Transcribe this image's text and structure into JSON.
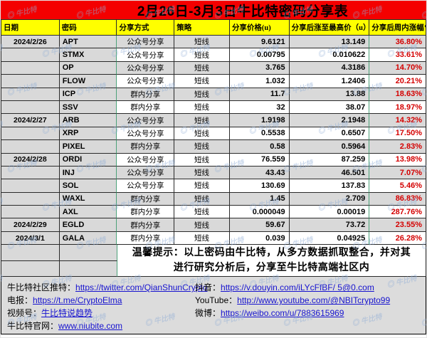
{
  "title": "2月26日-3月3日牛比特密码分享表",
  "watermark": "牛比特",
  "columns": [
    "日期",
    "密码",
    "分享方式",
    "策略",
    "分享价格(u)",
    "分享后涨至最高价（u）",
    "分享后周内涨幅%"
  ],
  "rows": [
    {
      "date": "2024/2/26",
      "code": "APT",
      "method": "公众号分享",
      "strategy": "短线",
      "price": "9.6121",
      "high": "13.149",
      "gain": "36.80%"
    },
    {
      "date": "",
      "code": "STMX",
      "method": "公众号分享",
      "strategy": "短线",
      "price": "0.00795",
      "high": "0.010622",
      "gain": "33.61%"
    },
    {
      "date": "",
      "code": "OP",
      "method": "公众号分享",
      "strategy": "短线",
      "price": "3.765",
      "high": "4.3186",
      "gain": "14.70%"
    },
    {
      "date": "",
      "code": "FLOW",
      "method": "公众号分享",
      "strategy": "短线",
      "price": "1.032",
      "high": "1.2406",
      "gain": "20.21%"
    },
    {
      "date": "",
      "code": "ICP",
      "method": "群内分享",
      "strategy": "短线",
      "price": "11.7",
      "high": "13.88",
      "gain": "18.63%"
    },
    {
      "date": "",
      "code": "SSV",
      "method": "群内分享",
      "strategy": "短线",
      "price": "32",
      "high": "38.07",
      "gain": "18.97%"
    },
    {
      "date": "2024/2/27",
      "code": "ARB",
      "method": "公众号分享",
      "strategy": "短线",
      "price": "1.9198",
      "high": "2.1948",
      "gain": "14.32%"
    },
    {
      "date": "",
      "code": "XRP",
      "method": "公众号分享",
      "strategy": "短线",
      "price": "0.5538",
      "high": "0.6507",
      "gain": "17.50%"
    },
    {
      "date": "",
      "code": "PIXEL",
      "method": "群内分享",
      "strategy": "短线",
      "price": "0.58",
      "high": "0.5964",
      "gain": "2.83%"
    },
    {
      "date": "2024/2/28",
      "code": "ORDI",
      "method": "公众号分享",
      "strategy": "短线",
      "price": "76.559",
      "high": "87.259",
      "gain": "13.98%"
    },
    {
      "date": "",
      "code": "INJ",
      "method": "公众号分享",
      "strategy": "短线",
      "price": "43.43",
      "high": "46.501",
      "gain": "7.07%"
    },
    {
      "date": "",
      "code": "SOL",
      "method": "公众号分享",
      "strategy": "短线",
      "price": "130.69",
      "high": "137.83",
      "gain": "5.46%"
    },
    {
      "date": "",
      "code": "WAXL",
      "method": "群内分享",
      "strategy": "短线",
      "price": "1.45",
      "high": "2.709",
      "gain": "86.83%"
    },
    {
      "date": "",
      "code": "AXL",
      "method": "群内分享",
      "strategy": "短线",
      "price": "0.000049",
      "high": "0.00019",
      "gain": "287.76%"
    },
    {
      "date": "2024/2/29",
      "code": "EGLD",
      "method": "群内分享",
      "strategy": "短线",
      "price": "59.67",
      "high": "73.72",
      "gain": "23.55%"
    },
    {
      "date": "2024/3/1",
      "code": "GALA",
      "method": "群内分享",
      "strategy": "短线",
      "price": "0.039",
      "high": "0.04925",
      "gain": "26.28%"
    }
  ],
  "note": {
    "line1": "温馨提示：以上密码由牛比特，从多方数据抓取整合，并对其",
    "line2": "进行研究分析后，分享至牛比特高端社区内"
  },
  "footer": {
    "left": [
      {
        "label": "牛比特社区推特：",
        "value": "https://twitter.com/QianShunCrypto"
      },
      {
        "label": "电报：",
        "value": "https://t.me/CryptoElma"
      },
      {
        "label": "视频号：",
        "value": "牛比特说趋势"
      },
      {
        "label": "牛比特官网：",
        "value": "www.niubite.com"
      }
    ],
    "right": [
      {
        "label": "抖音：",
        "value": "https://v.douyin.com/iLYcFfBF/ 5@0.com"
      },
      {
        "label": "YouTube：",
        "value": "http://www.youtube.com/@NBITcrypto99"
      },
      {
        "label": "微博：",
        "value": "https://weibo.com/u/7883615969"
      }
    ]
  },
  "colors": {
    "title_bg": "#f40000",
    "header_bg": "#ffff00",
    "row_gray": "#d9d9d9",
    "gain_red": "#d40000",
    "link_blue": "#1612cf",
    "divider_green": "#4ba178",
    "footer_bg": "#dcdcdc"
  }
}
